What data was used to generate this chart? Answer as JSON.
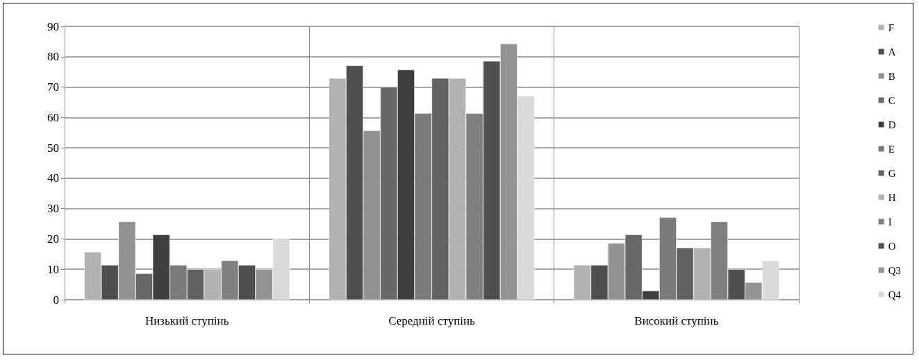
{
  "chart_data": {
    "type": "bar",
    "categories": [
      "Низький ступінь",
      "Середній ступінь",
      "Високий ступінь"
    ],
    "series": [
      {
        "name": "F",
        "color": "#b2b2b2",
        "values": [
          15.7,
          72.9,
          11.4
        ]
      },
      {
        "name": "A",
        "color": "#4f4f4f",
        "values": [
          11.4,
          77.1,
          11.4
        ]
      },
      {
        "name": "B",
        "color": "#929292",
        "values": [
          25.7,
          55.7,
          18.6
        ]
      },
      {
        "name": "C",
        "color": "#686868",
        "values": [
          8.6,
          70,
          21.4
        ]
      },
      {
        "name": "D",
        "color": "#3f3f3f",
        "values": [
          21.4,
          75.7,
          2.9
        ]
      },
      {
        "name": "E",
        "color": "#7a7a7a",
        "values": [
          11.4,
          61.4,
          27.1
        ]
      },
      {
        "name": "G",
        "color": "#616161",
        "values": [
          10,
          72.9,
          17.1
        ]
      },
      {
        "name": "H",
        "color": "#b2b2b2",
        "values": [
          10,
          72.9,
          17.1
        ]
      },
      {
        "name": "I",
        "color": "#808080",
        "values": [
          12.9,
          61.4,
          25.7
        ]
      },
      {
        "name": "O",
        "color": "#4f4f4f",
        "values": [
          11.4,
          78.6,
          10
        ]
      },
      {
        "name": "Q3",
        "color": "#939393",
        "values": [
          10,
          84.3,
          5.7
        ]
      },
      {
        "name": "Q4",
        "color": "#d9d9d9",
        "values": [
          20,
          67.1,
          12.9
        ]
      }
    ],
    "ylim": [
      0,
      90
    ],
    "yticks": [
      0,
      10,
      20,
      30,
      40,
      50,
      60,
      70,
      80,
      90
    ],
    "grid": true,
    "legend": "right"
  }
}
